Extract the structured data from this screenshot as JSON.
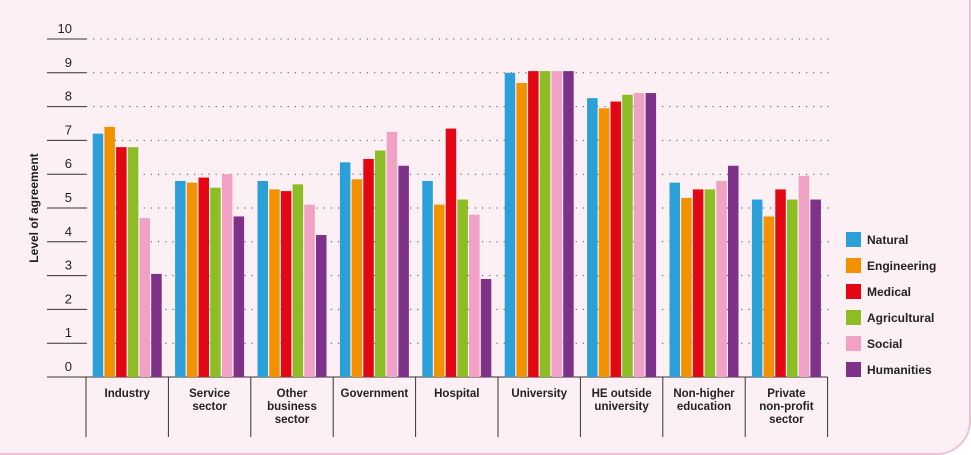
{
  "chart_data": {
    "type": "bar",
    "title": "",
    "xlabel": "",
    "ylabel": "Level of agreement",
    "ylim": [
      0,
      10
    ],
    "yticks": [
      0,
      1,
      2,
      3,
      4,
      5,
      6,
      7,
      8,
      9,
      10
    ],
    "grid": "dotted horizontal",
    "legend_position": "right",
    "categories": [
      [
        "Industry"
      ],
      [
        "Service",
        "sector"
      ],
      [
        "Other",
        "business",
        "sector"
      ],
      [
        "Government"
      ],
      [
        "Hospital"
      ],
      [
        "University"
      ],
      [
        "HE outside",
        "university"
      ],
      [
        "Non-higher",
        "education"
      ],
      [
        "Private",
        "non-profit",
        "sector"
      ]
    ],
    "series": [
      {
        "name": "Natural",
        "color": "#2a9fd8",
        "values": [
          7.2,
          5.8,
          5.8,
          6.35,
          5.8,
          9.0,
          8.25,
          5.75,
          5.25
        ]
      },
      {
        "name": "Engineering",
        "color": "#f39200",
        "values": [
          7.4,
          5.75,
          5.55,
          5.85,
          5.1,
          8.7,
          7.95,
          5.3,
          4.75
        ]
      },
      {
        "name": "Medical",
        "color": "#e30613",
        "values": [
          6.8,
          5.9,
          5.5,
          6.45,
          7.35,
          9.05,
          8.15,
          5.55,
          5.55
        ]
      },
      {
        "name": "Agricultural",
        "color": "#8cbd24",
        "values": [
          6.8,
          5.6,
          5.7,
          6.7,
          5.25,
          9.05,
          8.35,
          5.55,
          5.25
        ]
      },
      {
        "name": "Social",
        "color": "#f1a1c4",
        "values": [
          4.7,
          6.0,
          5.1,
          7.25,
          4.8,
          9.05,
          8.4,
          5.8,
          5.95
        ]
      },
      {
        "name": "Humanities",
        "color": "#7d3188",
        "values": [
          3.05,
          4.75,
          4.2,
          6.25,
          2.9,
          9.05,
          8.4,
          6.25,
          5.25
        ]
      }
    ]
  }
}
